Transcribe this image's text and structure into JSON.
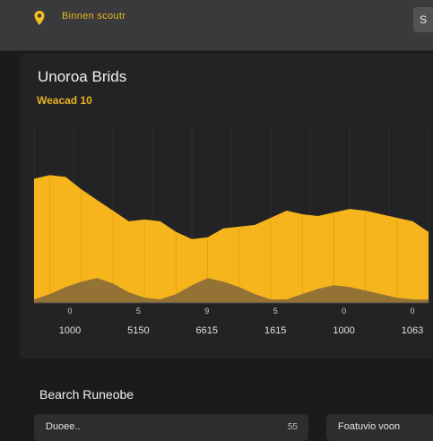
{
  "header": {
    "title": "Binnen scoutr",
    "button_label": "S",
    "pin_icon": "location-pin-icon",
    "accent": "#f2c01f"
  },
  "card": {
    "title": "Unoroa Brids",
    "subtitle": "Weacad 10"
  },
  "chart_data": {
    "type": "area",
    "x_labels": [
      "1000",
      "5150",
      "6615",
      "1615",
      "1000",
      "1063"
    ],
    "tick_marks_above": [
      "0",
      "5",
      "9",
      "5",
      "0",
      "0"
    ],
    "series": [
      {
        "values": [
          70,
          72,
          71,
          64,
          58,
          52,
          46,
          47,
          46,
          40,
          36,
          37,
          42,
          43,
          44,
          48,
          52,
          50,
          49,
          51,
          53,
          52,
          50,
          48,
          46,
          40
        ]
      },
      {
        "values": [
          2,
          5,
          9,
          12,
          14,
          11,
          6,
          3,
          2,
          5,
          10,
          14,
          12,
          9,
          5,
          2,
          2,
          5,
          8,
          10,
          9,
          7,
          5,
          3,
          2,
          2
        ]
      }
    ],
    "colors": [
      "#f6b51c",
      "#8a6a3a"
    ],
    "grid": true,
    "ylim": [
      0,
      100
    ]
  },
  "section": {
    "title": "Bearch Runeobe"
  },
  "mini_cards": [
    {
      "label": "Duoee..",
      "value": "55"
    },
    {
      "label": "Foatuvio voon",
      "value": ""
    }
  ]
}
